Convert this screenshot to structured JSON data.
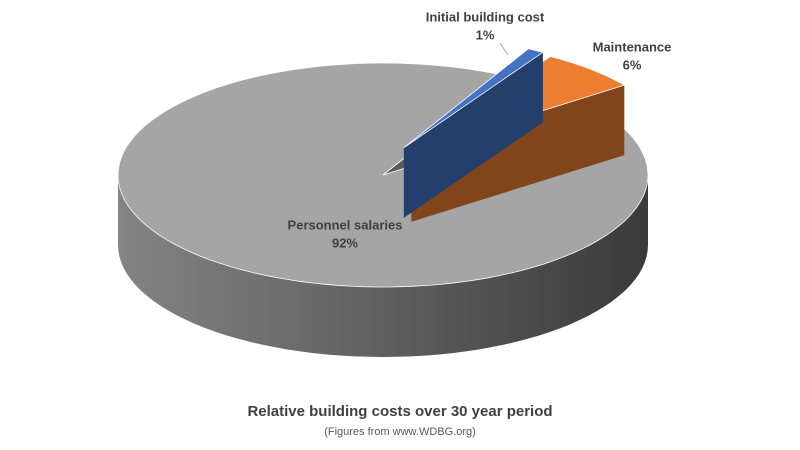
{
  "chart_data": {
    "type": "pie",
    "title": "Relative building costs over 30 year period",
    "subtitle": "(Figures from www.WDBG.org)",
    "categories": [
      "Initial building cost",
      "Maintenance",
      "Personnel salaries"
    ],
    "values": [
      1,
      6,
      92
    ],
    "value_labels": [
      "1%",
      "6%",
      "92%"
    ],
    "colors": [
      "#4472c4",
      "#ed7d31",
      "#a5a5a5"
    ]
  }
}
